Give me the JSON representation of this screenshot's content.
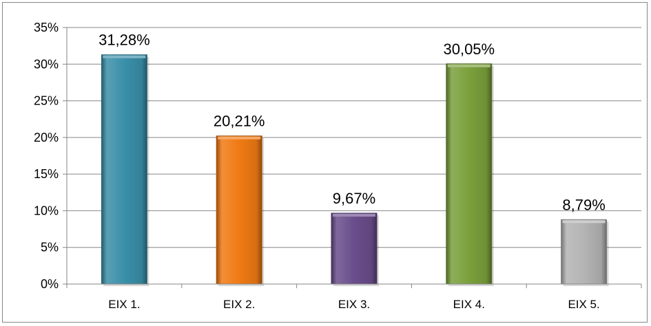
{
  "chart_data": {
    "type": "bar",
    "title": "",
    "xlabel": "",
    "ylabel": "",
    "categories": [
      "EIX 1.",
      "EIX 2.",
      "EIX 3.",
      "EIX 4.",
      "EIX 5."
    ],
    "values": [
      31.28,
      20.21,
      9.67,
      30.05,
      8.79
    ],
    "data_labels": [
      "31,28%",
      "20,21%",
      "9,67%",
      "30,05%",
      "8,79%"
    ],
    "colors": [
      "#3a8fa9",
      "#f07a14",
      "#6a4d8c",
      "#7aa03c",
      "#b4b4b4"
    ],
    "ylim": [
      0,
      35
    ],
    "yticks": [
      0,
      5,
      10,
      15,
      20,
      25,
      30,
      35
    ],
    "ytick_labels": [
      "0%",
      "5%",
      "10%",
      "15%",
      "20%",
      "25%",
      "30%",
      "35%"
    ],
    "grid": true,
    "legend": "none"
  }
}
